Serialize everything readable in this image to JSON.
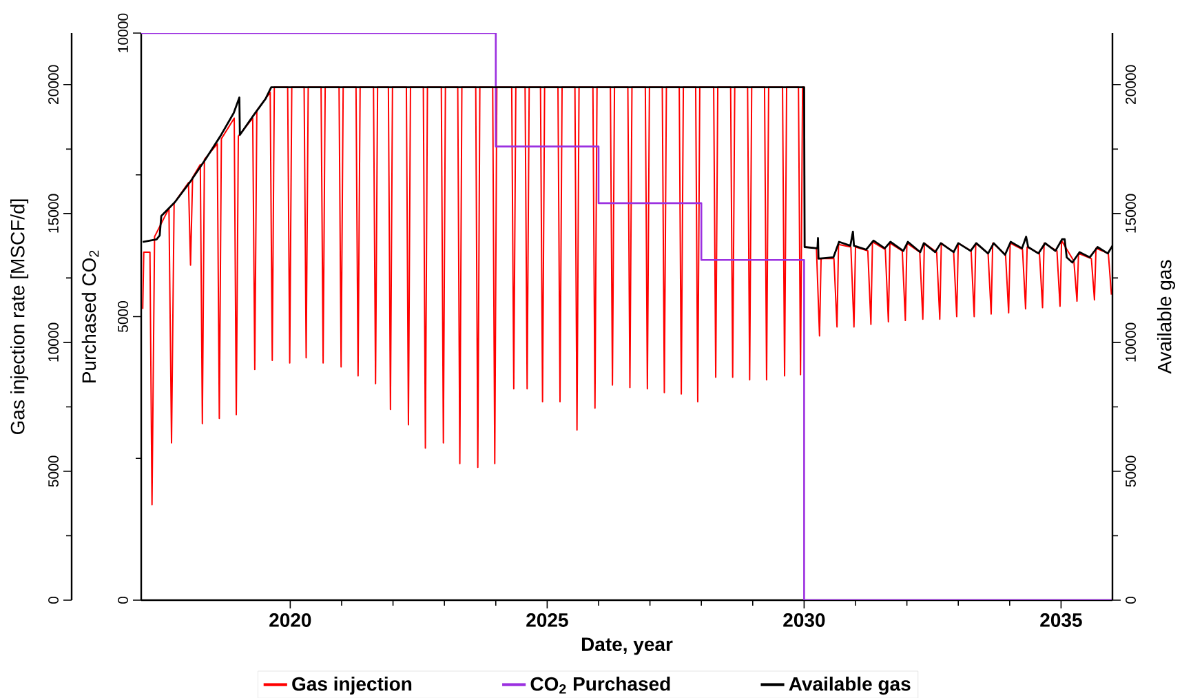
{
  "chart_data": {
    "type": "line",
    "xlabel": "Date, year",
    "ylabel": "Gas injection rate [MSCF/d]",
    "y2label": "Purchased CO$_{2}$",
    "y3label": "Available gas",
    "xlim": [
      2017.1,
      2036
    ],
    "xticks": [
      2020,
      2025,
      2030,
      2035
    ],
    "ylim": [
      0,
      22000
    ],
    "yticks": [
      0,
      5000,
      10000,
      15000,
      20000
    ],
    "y2lim": [
      0,
      10000
    ],
    "y2ticks": [
      0,
      5000,
      10000
    ],
    "y3lim": [
      0,
      22000
    ],
    "y3ticks": [
      0,
      5000,
      10000,
      15000,
      20000
    ],
    "legend": "bottom",
    "series": [
      {
        "name": "Gas injection",
        "color": "#ff0000",
        "x": [
          2017.13,
          2017.15,
          2017.27,
          2017.31,
          2017.36,
          2017.64,
          2017.69,
          2017.74,
          2018.02,
          2018.06,
          2018.1,
          2018.25,
          2018.29,
          2018.33,
          2018.58,
          2018.62,
          2018.66,
          2018.91,
          2018.95,
          2018.99,
          2019.27,
          2019.31,
          2019.35,
          2019.61,
          2019.65,
          2019.69,
          2019.95,
          2019.99,
          2020.03,
          2020.27,
          2020.31,
          2020.35,
          2020.6,
          2020.64,
          2020.68,
          2020.95,
          2020.99,
          2021.03,
          2021.28,
          2021.32,
          2021.36,
          2021.62,
          2021.66,
          2021.7,
          2021.91,
          2021.95,
          2021.99,
          2022.26,
          2022.3,
          2022.34,
          2022.59,
          2022.63,
          2022.67,
          2022.94,
          2022.98,
          2023.02,
          2023.26,
          2023.3,
          2023.34,
          2023.61,
          2023.65,
          2023.69,
          2023.94,
          2023.98,
          2024.02,
          2024.31,
          2024.35,
          2024.39,
          2024.57,
          2024.61,
          2024.65,
          2024.87,
          2024.91,
          2024.95,
          2025.21,
          2025.25,
          2025.29,
          2025.54,
          2025.58,
          2025.62,
          2025.89,
          2025.93,
          2025.97,
          2026.23,
          2026.27,
          2026.31,
          2026.57,
          2026.61,
          2026.65,
          2026.91,
          2026.95,
          2026.99,
          2027.24,
          2027.28,
          2027.32,
          2027.57,
          2027.61,
          2027.65,
          2027.89,
          2027.93,
          2027.97,
          2028.24,
          2028.28,
          2028.32,
          2028.57,
          2028.61,
          2028.65,
          2028.9,
          2028.94,
          2028.98,
          2029.23,
          2029.27,
          2029.31,
          2029.58,
          2029.62,
          2029.66,
          2029.89,
          2029.93,
          2029.97,
          2030.0,
          2030.01,
          2030.24,
          2030.3,
          2030.33,
          2030.58,
          2030.64,
          2030.67,
          2030.91,
          2030.97,
          2031.0,
          2031.24,
          2031.3,
          2031.33,
          2031.58,
          2031.64,
          2031.67,
          2031.91,
          2031.97,
          2032.0,
          2032.25,
          2032.31,
          2032.34,
          2032.58,
          2032.64,
          2032.67,
          2032.91,
          2032.97,
          2033.0,
          2033.25,
          2033.31,
          2033.34,
          2033.58,
          2033.64,
          2033.67,
          2033.92,
          2033.98,
          2034.01,
          2034.25,
          2034.31,
          2034.34,
          2034.58,
          2034.64,
          2034.67,
          2034.92,
          2034.98,
          2035.01,
          2035.25,
          2035.31,
          2035.34,
          2035.59,
          2035.65,
          2035.68,
          2035.92,
          2035.98
        ],
        "values": [
          11300,
          13500,
          13500,
          3700,
          14100,
          15200,
          6100,
          15400,
          16200,
          13000,
          16400,
          16900,
          6850,
          17100,
          17700,
          7050,
          17900,
          18700,
          7200,
          18000,
          18700,
          8950,
          19000,
          19700,
          9300,
          19900,
          19900,
          9200,
          19900,
          19900,
          9400,
          19900,
          19900,
          9200,
          19900,
          19900,
          9050,
          19900,
          19900,
          8700,
          19900,
          19900,
          8400,
          19900,
          19900,
          7400,
          19900,
          19900,
          6800,
          19900,
          19900,
          5900,
          19900,
          19900,
          6100,
          19900,
          19900,
          5300,
          19900,
          19900,
          5150,
          19900,
          19900,
          5300,
          19900,
          19900,
          8200,
          19900,
          19900,
          8200,
          19900,
          19900,
          7700,
          19900,
          19900,
          7700,
          19900,
          19900,
          6600,
          19900,
          19900,
          7450,
          19900,
          19900,
          8350,
          19900,
          19900,
          8250,
          19900,
          19900,
          8200,
          19900,
          19900,
          8050,
          19900,
          19900,
          8000,
          19900,
          19900,
          7700,
          19900,
          19900,
          8650,
          19900,
          19900,
          8650,
          19900,
          19900,
          8550,
          19900,
          19900,
          8550,
          19900,
          19900,
          8700,
          19900,
          19900,
          8750,
          19900,
          19900,
          13700,
          13650,
          10250,
          13250,
          13250,
          10600,
          13800,
          13700,
          10600,
          13700,
          13550,
          10700,
          13900,
          13600,
          10800,
          13850,
          13550,
          10850,
          13850,
          13500,
          10900,
          13850,
          13500,
          10900,
          13850,
          13500,
          11000,
          13850,
          13550,
          11000,
          13850,
          13450,
          11100,
          13850,
          13400,
          11150,
          13850,
          13600,
          11300,
          13700,
          13450,
          11350,
          13850,
          13550,
          11400,
          13950,
          13150,
          11600,
          13450,
          13250,
          11650,
          13650,
          13450,
          11850
        ]
      },
      {
        "name": "CO$_{2}$ Purchased",
        "color": "#9b30e0",
        "type": "step",
        "axis": "y2",
        "x": [
          2017.1,
          2024,
          2026,
          2028,
          2030,
          2036
        ],
        "values": [
          10000,
          8000,
          7000,
          6000,
          0,
          0
        ]
      },
      {
        "name": "Available gas",
        "color": "#000000",
        "axis": "y3",
        "x": [
          2017.13,
          2017.4,
          2017.46,
          2017.49,
          2017.76,
          2018.06,
          2018.35,
          2018.64,
          2018.9,
          2019.01,
          2019.02,
          2019.3,
          2019.52,
          2019.63,
          2030.0,
          2030.01,
          2030.26,
          2030.27,
          2030.28,
          2030.57,
          2030.68,
          2030.9,
          2030.95,
          2030.97,
          2031.21,
          2031.35,
          2031.57,
          2031.68,
          2031.93,
          2032.02,
          2032.26,
          2032.33,
          2032.55,
          2032.66,
          2032.91,
          2033.0,
          2033.24,
          2033.35,
          2033.58,
          2033.69,
          2033.91,
          2034.02,
          2034.24,
          2034.32,
          2034.36,
          2034.56,
          2034.69,
          2034.89,
          2035.02,
          2035.07,
          2035.11,
          2035.22,
          2035.36,
          2035.56,
          2035.71,
          2035.91,
          2036.0
        ],
        "values": [
          13900,
          14000,
          14150,
          14900,
          15450,
          16250,
          17100,
          18000,
          18900,
          19500,
          18050,
          18850,
          19450,
          19900,
          19900,
          13700,
          13650,
          14050,
          13250,
          13300,
          13900,
          13750,
          14300,
          13750,
          13600,
          13950,
          13650,
          13900,
          13550,
          13900,
          13500,
          13850,
          13500,
          13850,
          13500,
          13850,
          13550,
          13850,
          13450,
          13850,
          13400,
          13900,
          13650,
          14100,
          13700,
          13450,
          13850,
          13550,
          14000,
          14000,
          13300,
          13100,
          13500,
          13300,
          13700,
          13450,
          13750
        ]
      }
    ]
  }
}
